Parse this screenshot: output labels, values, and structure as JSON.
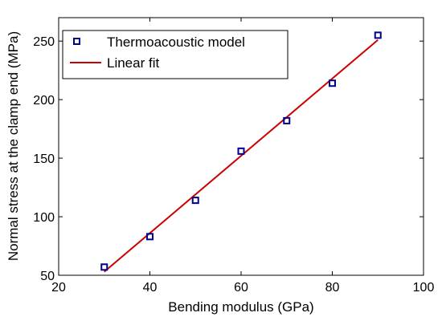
{
  "chart_data": {
    "type": "scatter",
    "xlabel": "Bending modulus (GPa)",
    "ylabel": "Normal stress at the clamp end (MPa)",
    "xlim": [
      20,
      100
    ],
    "ylim": [
      50,
      270
    ],
    "xticks": [
      "20",
      "40",
      "60",
      "80",
      "100"
    ],
    "yticks": [
      "50",
      "100",
      "150",
      "200",
      "250"
    ],
    "grid": false,
    "legend_position": "top-left",
    "series": [
      {
        "name": "Thermoacoustic model",
        "kind": "markers",
        "marker": "square",
        "color": "#00008b",
        "x": [
          30,
          40,
          50,
          60,
          70,
          80,
          90
        ],
        "y": [
          57,
          83,
          114,
          156,
          182,
          214,
          255
        ]
      },
      {
        "name": "Linear fit",
        "kind": "line",
        "color": "#cc0000",
        "x": [
          30,
          90
        ],
        "y": [
          53,
          251
        ]
      }
    ]
  }
}
